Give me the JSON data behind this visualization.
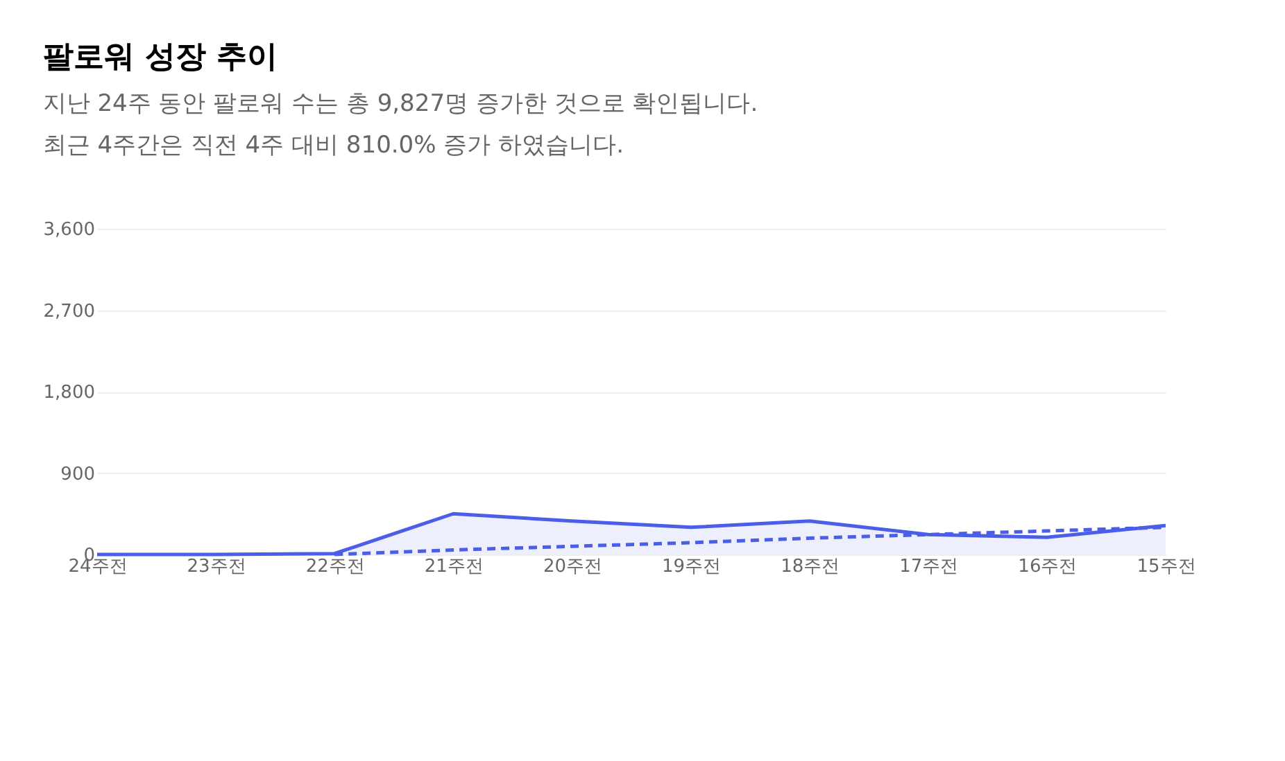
{
  "chart_data": {
    "type": "line",
    "title": "팔로워 성장 추이",
    "subtitle": "지난 24주 동안 팔로워 수는 총 9,827명 증가한 것으로 확인됩니다.\n최근 4주간은 직전 4주 대비 810.0% 증가 하였습니다.",
    "categories": [
      "24주전",
      "23주전",
      "22주전",
      "21주전",
      "20주전",
      "19주전",
      "18주전",
      "17주전",
      "16주전",
      "15주전"
    ],
    "series": [
      {
        "type": "area",
        "color": "#4a5ee8",
        "line_style": "solid",
        "values": [
          0,
          0,
          10,
          450,
          370,
          300,
          370,
          220,
          190,
          320
        ]
      },
      {
        "color": "#4a5ee8",
        "line_style": "dashed",
        "values": [
          null,
          null,
          0,
          50,
          90,
          130,
          180,
          220,
          260,
          300
        ]
      }
    ],
    "ylim": [
      0,
      3600
    ],
    "yticks": [
      0,
      900,
      {
        "value": 1800,
        "label": "1,800"
      },
      {
        "value": 2700,
        "label": "2,700"
      },
      {
        "value": 3600,
        "label": "3,600"
      }
    ],
    "grid": "y",
    "marker": "none"
  }
}
